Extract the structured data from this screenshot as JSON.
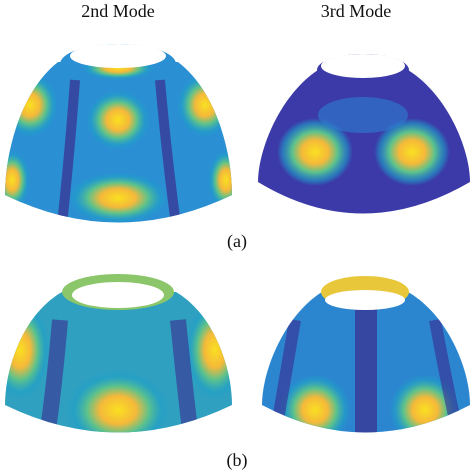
{
  "columns": [
    "2nd Mode",
    "3rd Mode"
  ],
  "panels": [
    {
      "label": "(a)"
    },
    {
      "label": "(b)"
    }
  ]
}
